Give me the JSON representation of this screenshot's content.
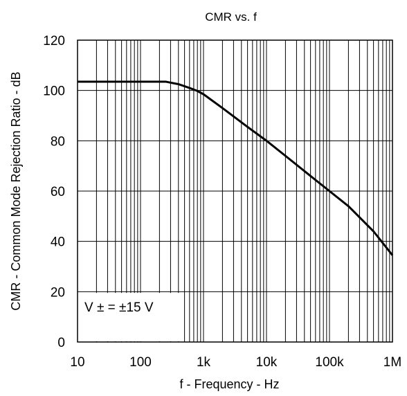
{
  "chart_data": {
    "type": "line",
    "title": "CMR vs. f",
    "xlabel": "f - Frequency - Hz",
    "ylabel": "CMR - Common Mode Rejection Ratio - dB",
    "x_scale": "log",
    "xlim": [
      10,
      1000000
    ],
    "ylim": [
      0,
      120
    ],
    "x_ticks": [
      10,
      100,
      1000,
      10000,
      100000,
      1000000
    ],
    "x_tick_labels": [
      "10",
      "100",
      "1k",
      "10k",
      "100k",
      "1M"
    ],
    "y_ticks": [
      0,
      20,
      40,
      60,
      80,
      100,
      120
    ],
    "y_tick_labels": [
      "0",
      "20",
      "40",
      "60",
      "80",
      "100",
      "120"
    ],
    "grid": true,
    "annotation": "V ± = ±15 V",
    "series": [
      {
        "x": [
          10,
          100,
          250,
          400,
          600,
          800,
          1000,
          2000,
          5000,
          10000,
          20000,
          50000,
          100000,
          200000,
          500000,
          1000000
        ],
        "y": [
          103.5,
          103.5,
          103.5,
          102.5,
          101,
          99.8,
          98.5,
          93,
          85.5,
          80,
          74,
          66,
          60,
          54,
          44,
          34.5
        ]
      }
    ]
  }
}
